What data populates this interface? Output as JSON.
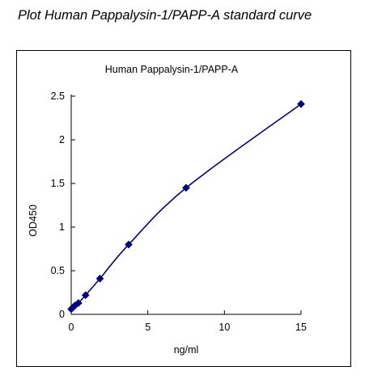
{
  "page": {
    "title": "Plot Human Pappalysin-1/PAPP-A standard curve"
  },
  "chart_data": {
    "type": "scatter",
    "title": "Human Pappalysin-1/PAPP-A",
    "xlabel": "ng/ml",
    "ylabel": "OD450",
    "xlim": [
      0,
      15
    ],
    "ylim": [
      0,
      2.5
    ],
    "x_ticks": [
      0,
      5,
      10,
      15
    ],
    "x_tick_labels": [
      "0",
      "5",
      "10",
      "15"
    ],
    "y_ticks": [
      0,
      0.5,
      1,
      1.5,
      2,
      2.5
    ],
    "y_tick_labels": [
      "0",
      "0.5",
      "1",
      "1.5",
      "2",
      "2.5"
    ],
    "grid": false,
    "legend": "none",
    "marker": "diamond",
    "color": "#000080",
    "line": "smooth",
    "series": [
      {
        "x": [
          0,
          0.117,
          0.234,
          0.469,
          0.938,
          1.875,
          3.75,
          7.5,
          15
        ],
        "y": [
          0.06,
          0.08,
          0.1,
          0.13,
          0.22,
          0.41,
          0.8,
          1.45,
          2.41
        ]
      }
    ]
  }
}
